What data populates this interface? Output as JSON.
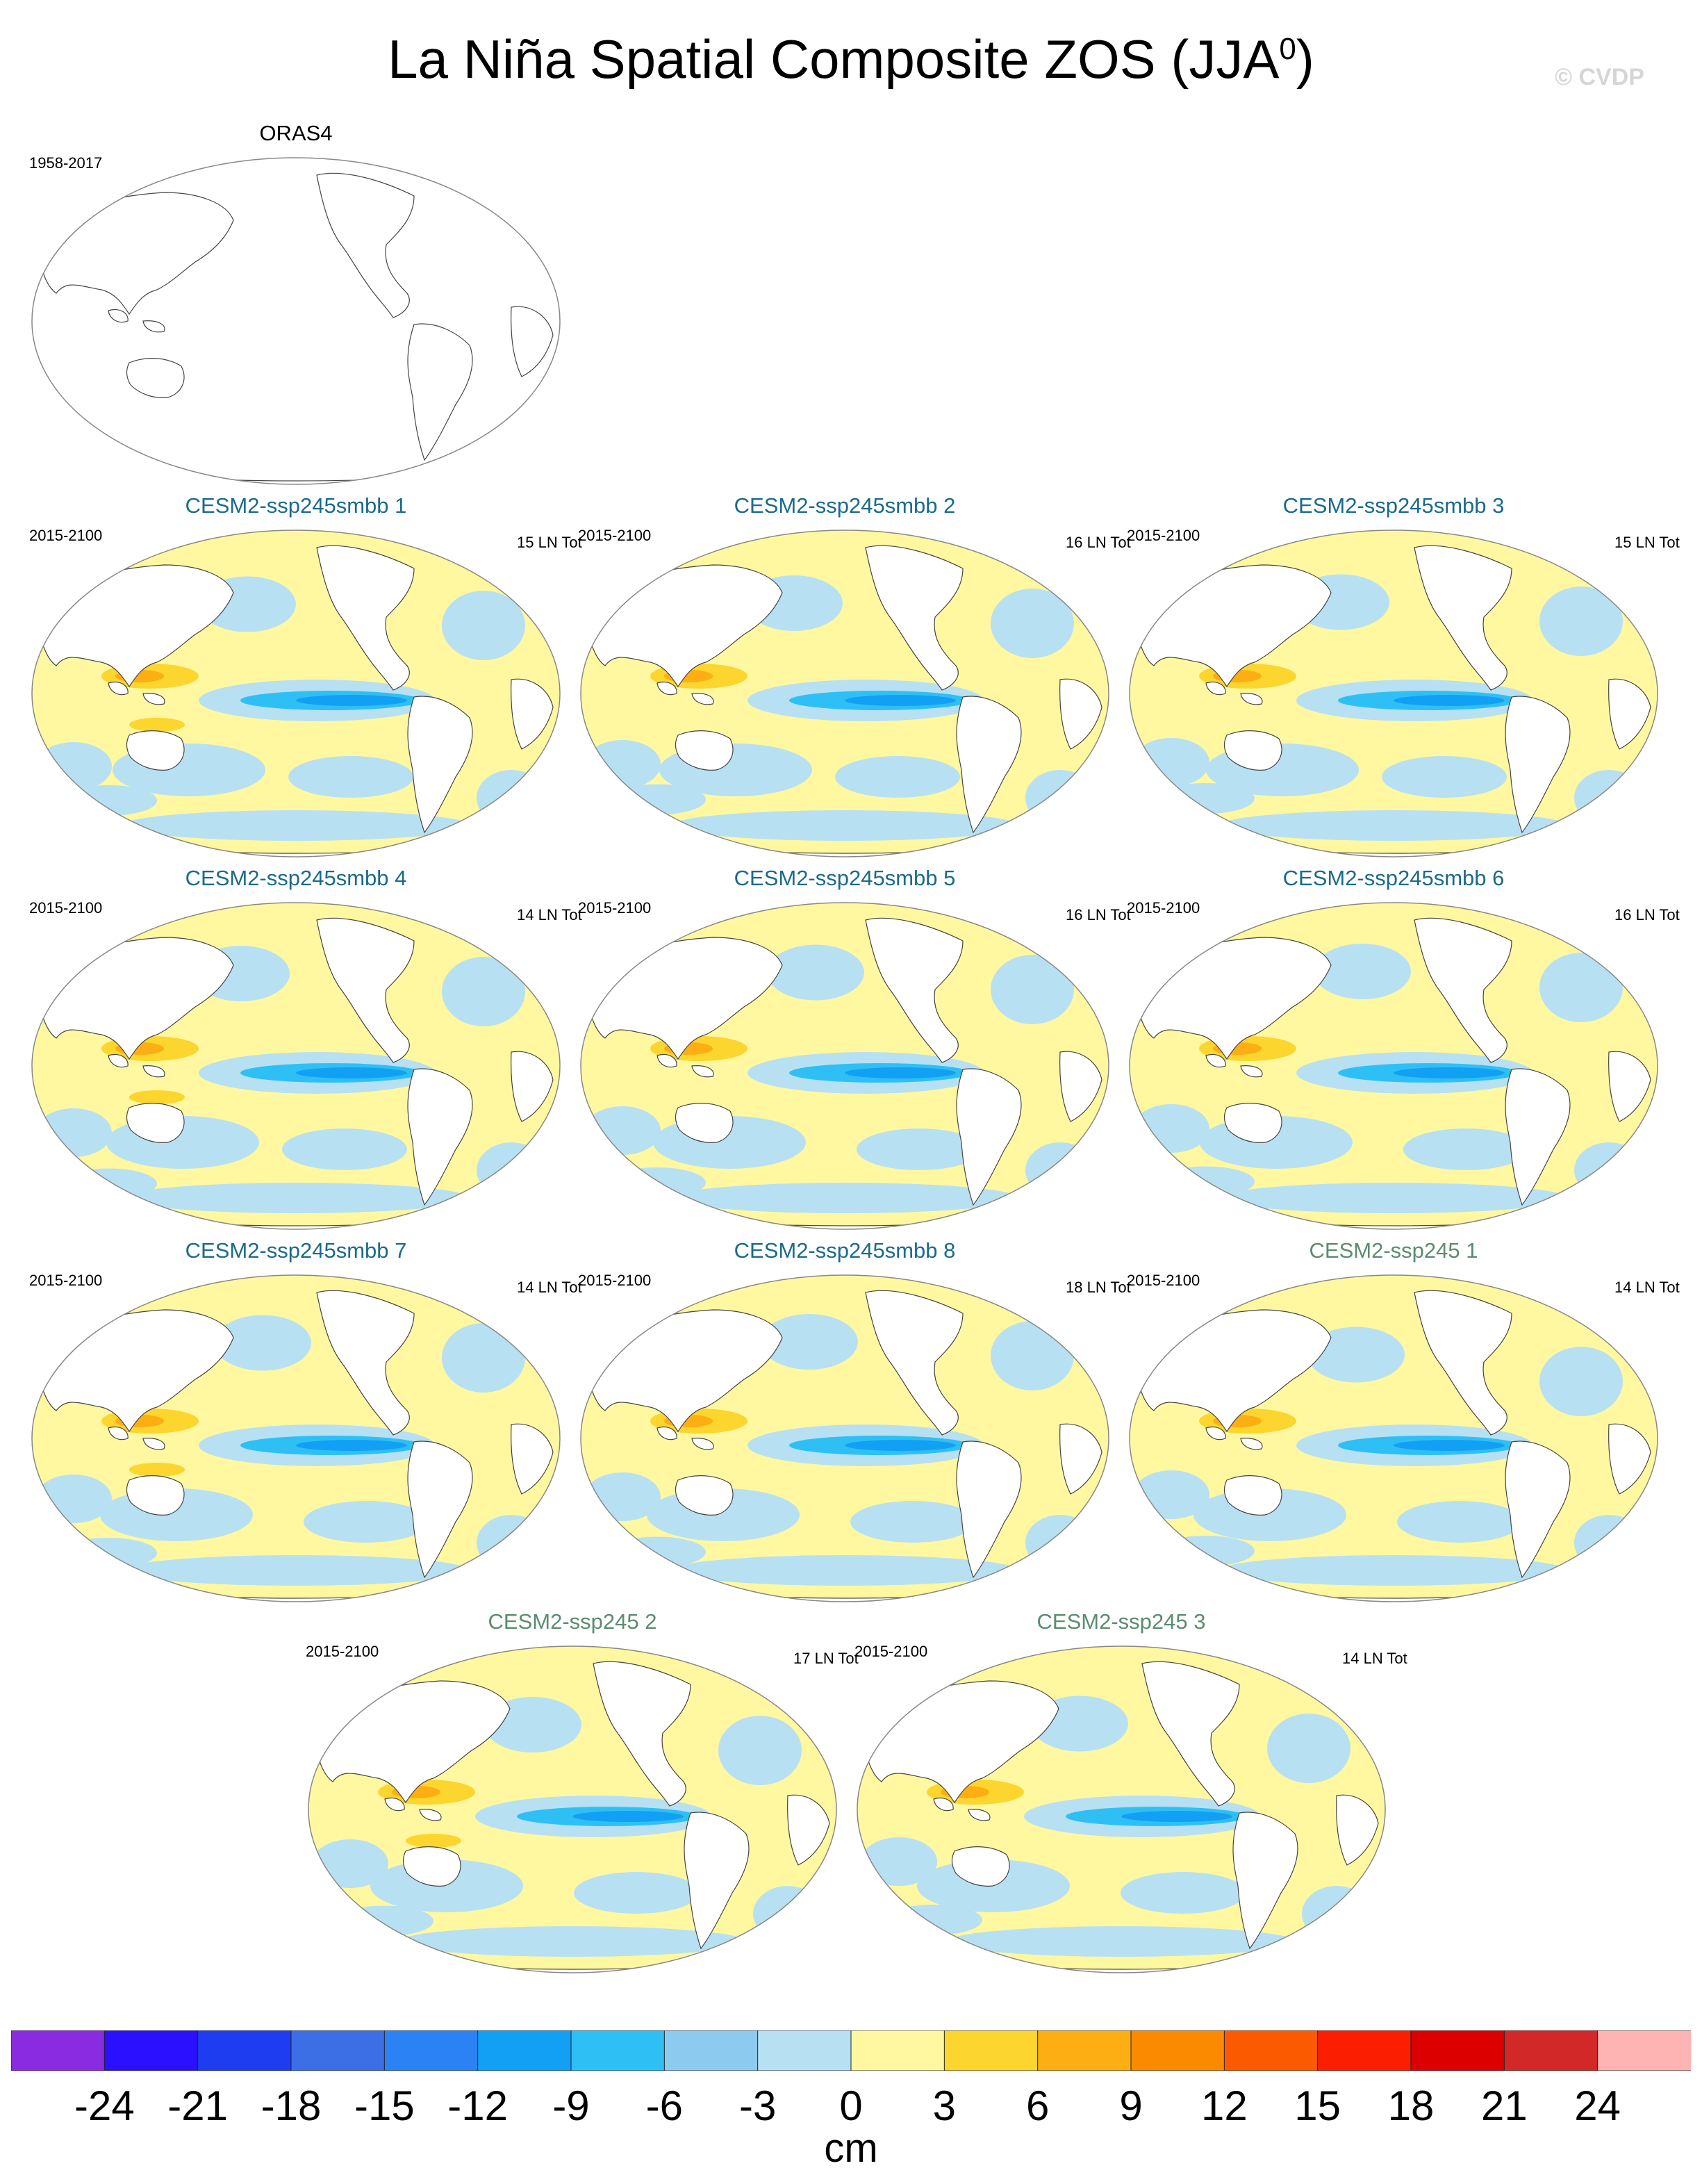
{
  "title": "La Niña Spatial Composite ZOS (JJA",
  "title_sup": "0",
  "title_close": ")",
  "watermark": "© CVDP",
  "panels": [
    {
      "title": "ORAS4",
      "years": "1958-2017",
      "count": "",
      "kind": "obs",
      "filled": false
    },
    {
      "title": "CESM2-ssp245smbb 1",
      "years": "2015-2100",
      "count": "15 LN Tot",
      "kind": "smbb",
      "filled": true
    },
    {
      "title": "CESM2-ssp245smbb 2",
      "years": "2015-2100",
      "count": "16 LN Tot",
      "kind": "smbb",
      "filled": true
    },
    {
      "title": "CESM2-ssp245smbb 3",
      "years": "2015-2100",
      "count": "15 LN Tot",
      "kind": "smbb",
      "filled": true
    },
    {
      "title": "CESM2-ssp245smbb 4",
      "years": "2015-2100",
      "count": "14 LN Tot",
      "kind": "smbb",
      "filled": true
    },
    {
      "title": "CESM2-ssp245smbb 5",
      "years": "2015-2100",
      "count": "16 LN Tot",
      "kind": "smbb",
      "filled": true
    },
    {
      "title": "CESM2-ssp245smbb 6",
      "years": "2015-2100",
      "count": "16 LN Tot",
      "kind": "smbb",
      "filled": true
    },
    {
      "title": "CESM2-ssp245smbb 7",
      "years": "2015-2100",
      "count": "14 LN Tot",
      "kind": "smbb",
      "filled": true
    },
    {
      "title": "CESM2-ssp245smbb 8",
      "years": "2015-2100",
      "count": "18 LN Tot",
      "kind": "smbb",
      "filled": true
    },
    {
      "title": "CESM2-ssp245 1",
      "years": "2015-2100",
      "count": "14 LN Tot",
      "kind": "ssp",
      "filled": true
    },
    {
      "title": "CESM2-ssp245 2",
      "years": "2015-2100",
      "count": "17 LN Tot",
      "kind": "ssp",
      "filled": true
    },
    {
      "title": "CESM2-ssp245 3",
      "years": "2015-2100",
      "count": "14 LN Tot",
      "kind": "ssp",
      "filled": true
    }
  ],
  "colorbar": {
    "units": "cm",
    "labels": [
      "-24",
      "-21",
      "-18",
      "-15",
      "-12",
      "-9",
      "-6",
      "-3",
      "0",
      "3",
      "6",
      "9",
      "12",
      "15",
      "18",
      "21",
      "24"
    ],
    "colors": [
      "#8a2be2",
      "#2a10ff",
      "#1e3cf0",
      "#3c6ee6",
      "#2b82f5",
      "#12a0f5",
      "#2ec0f5",
      "#8ccbef",
      "#b8e0f3",
      "#fff8a0",
      "#fcd52e",
      "#fcae12",
      "#fc8a00",
      "#fc5a00",
      "#fc1e00",
      "#dc0000",
      "#d22828",
      "#ffb4b4"
    ],
    "fill_palette": {
      "ocean_light_blue": "#b8e0f3",
      "ocean_yellow": "#fff8a0",
      "strong_blue": "#2ec0f5",
      "very_strong_blue": "#12a0f5",
      "warm": "#fcd52e",
      "warmer": "#fcae12"
    }
  }
}
